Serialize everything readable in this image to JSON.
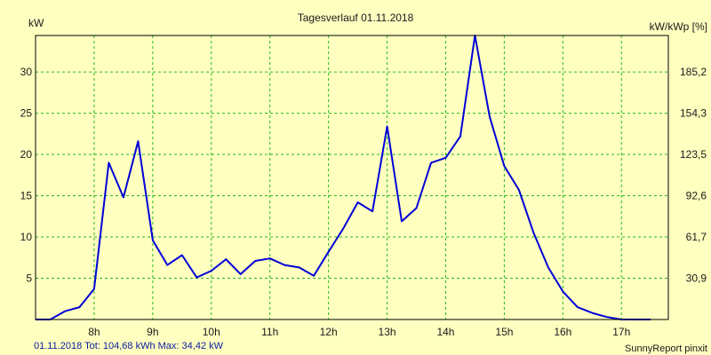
{
  "chart_data": {
    "type": "line",
    "title": "Tagesverlauf 01.11.2018",
    "ylabel_left": "kW",
    "ylabel_right": "kW/kWp [%]",
    "xlim": [
      7.0,
      17.8
    ],
    "ylim": [
      0,
      34.42
    ],
    "x_ticks": [
      "8h",
      "9h",
      "10h",
      "11h",
      "12h",
      "13h",
      "14h",
      "15h",
      "16h",
      "17h"
    ],
    "y_ticks_left": [
      "5",
      "10",
      "15",
      "20",
      "25",
      "30"
    ],
    "y_ticks_right": [
      "30,9",
      "61,7",
      "92,6",
      "123,5",
      "154,3",
      "185,2"
    ],
    "grid": true,
    "colors": {
      "line": "#0000d8",
      "grid": "#22bb22",
      "background": "#ffffc0",
      "footer_left": "#0a1ca0"
    },
    "series": [
      {
        "x": [
          7.0,
          7.25,
          7.5,
          7.75,
          8.0,
          8.25,
          8.5,
          8.75,
          9.0,
          9.25,
          9.5,
          9.75,
          10.0,
          10.25,
          10.5,
          10.75,
          11.0,
          11.25,
          11.5,
          11.75,
          12.0,
          12.25,
          12.5,
          12.75,
          13.0,
          13.25,
          13.5,
          13.75,
          14.0,
          14.25,
          14.5,
          14.75,
          15.0,
          15.25,
          15.5,
          15.75,
          16.0,
          16.25,
          16.5,
          16.75,
          17.0,
          17.25,
          17.5
        ],
        "y": [
          0.0,
          0.0,
          1.0,
          1.5,
          3.7,
          19.0,
          14.8,
          21.6,
          9.6,
          6.6,
          7.8,
          5.1,
          5.9,
          7.3,
          5.5,
          7.1,
          7.4,
          6.6,
          6.3,
          5.3,
          8.2,
          11.0,
          14.2,
          13.1,
          23.4,
          11.9,
          13.5,
          19.0,
          19.6,
          22.2,
          34.42,
          24.6,
          18.6,
          15.7,
          10.5,
          6.3,
          3.4,
          1.5,
          0.8,
          0.3,
          0.0,
          0.0,
          0.0
        ]
      }
    ]
  },
  "footer": {
    "left": "01.11.2018 Tot: 104,68 kWh Max: 34,42 kW",
    "right": "SunnyReport pinxit"
  }
}
